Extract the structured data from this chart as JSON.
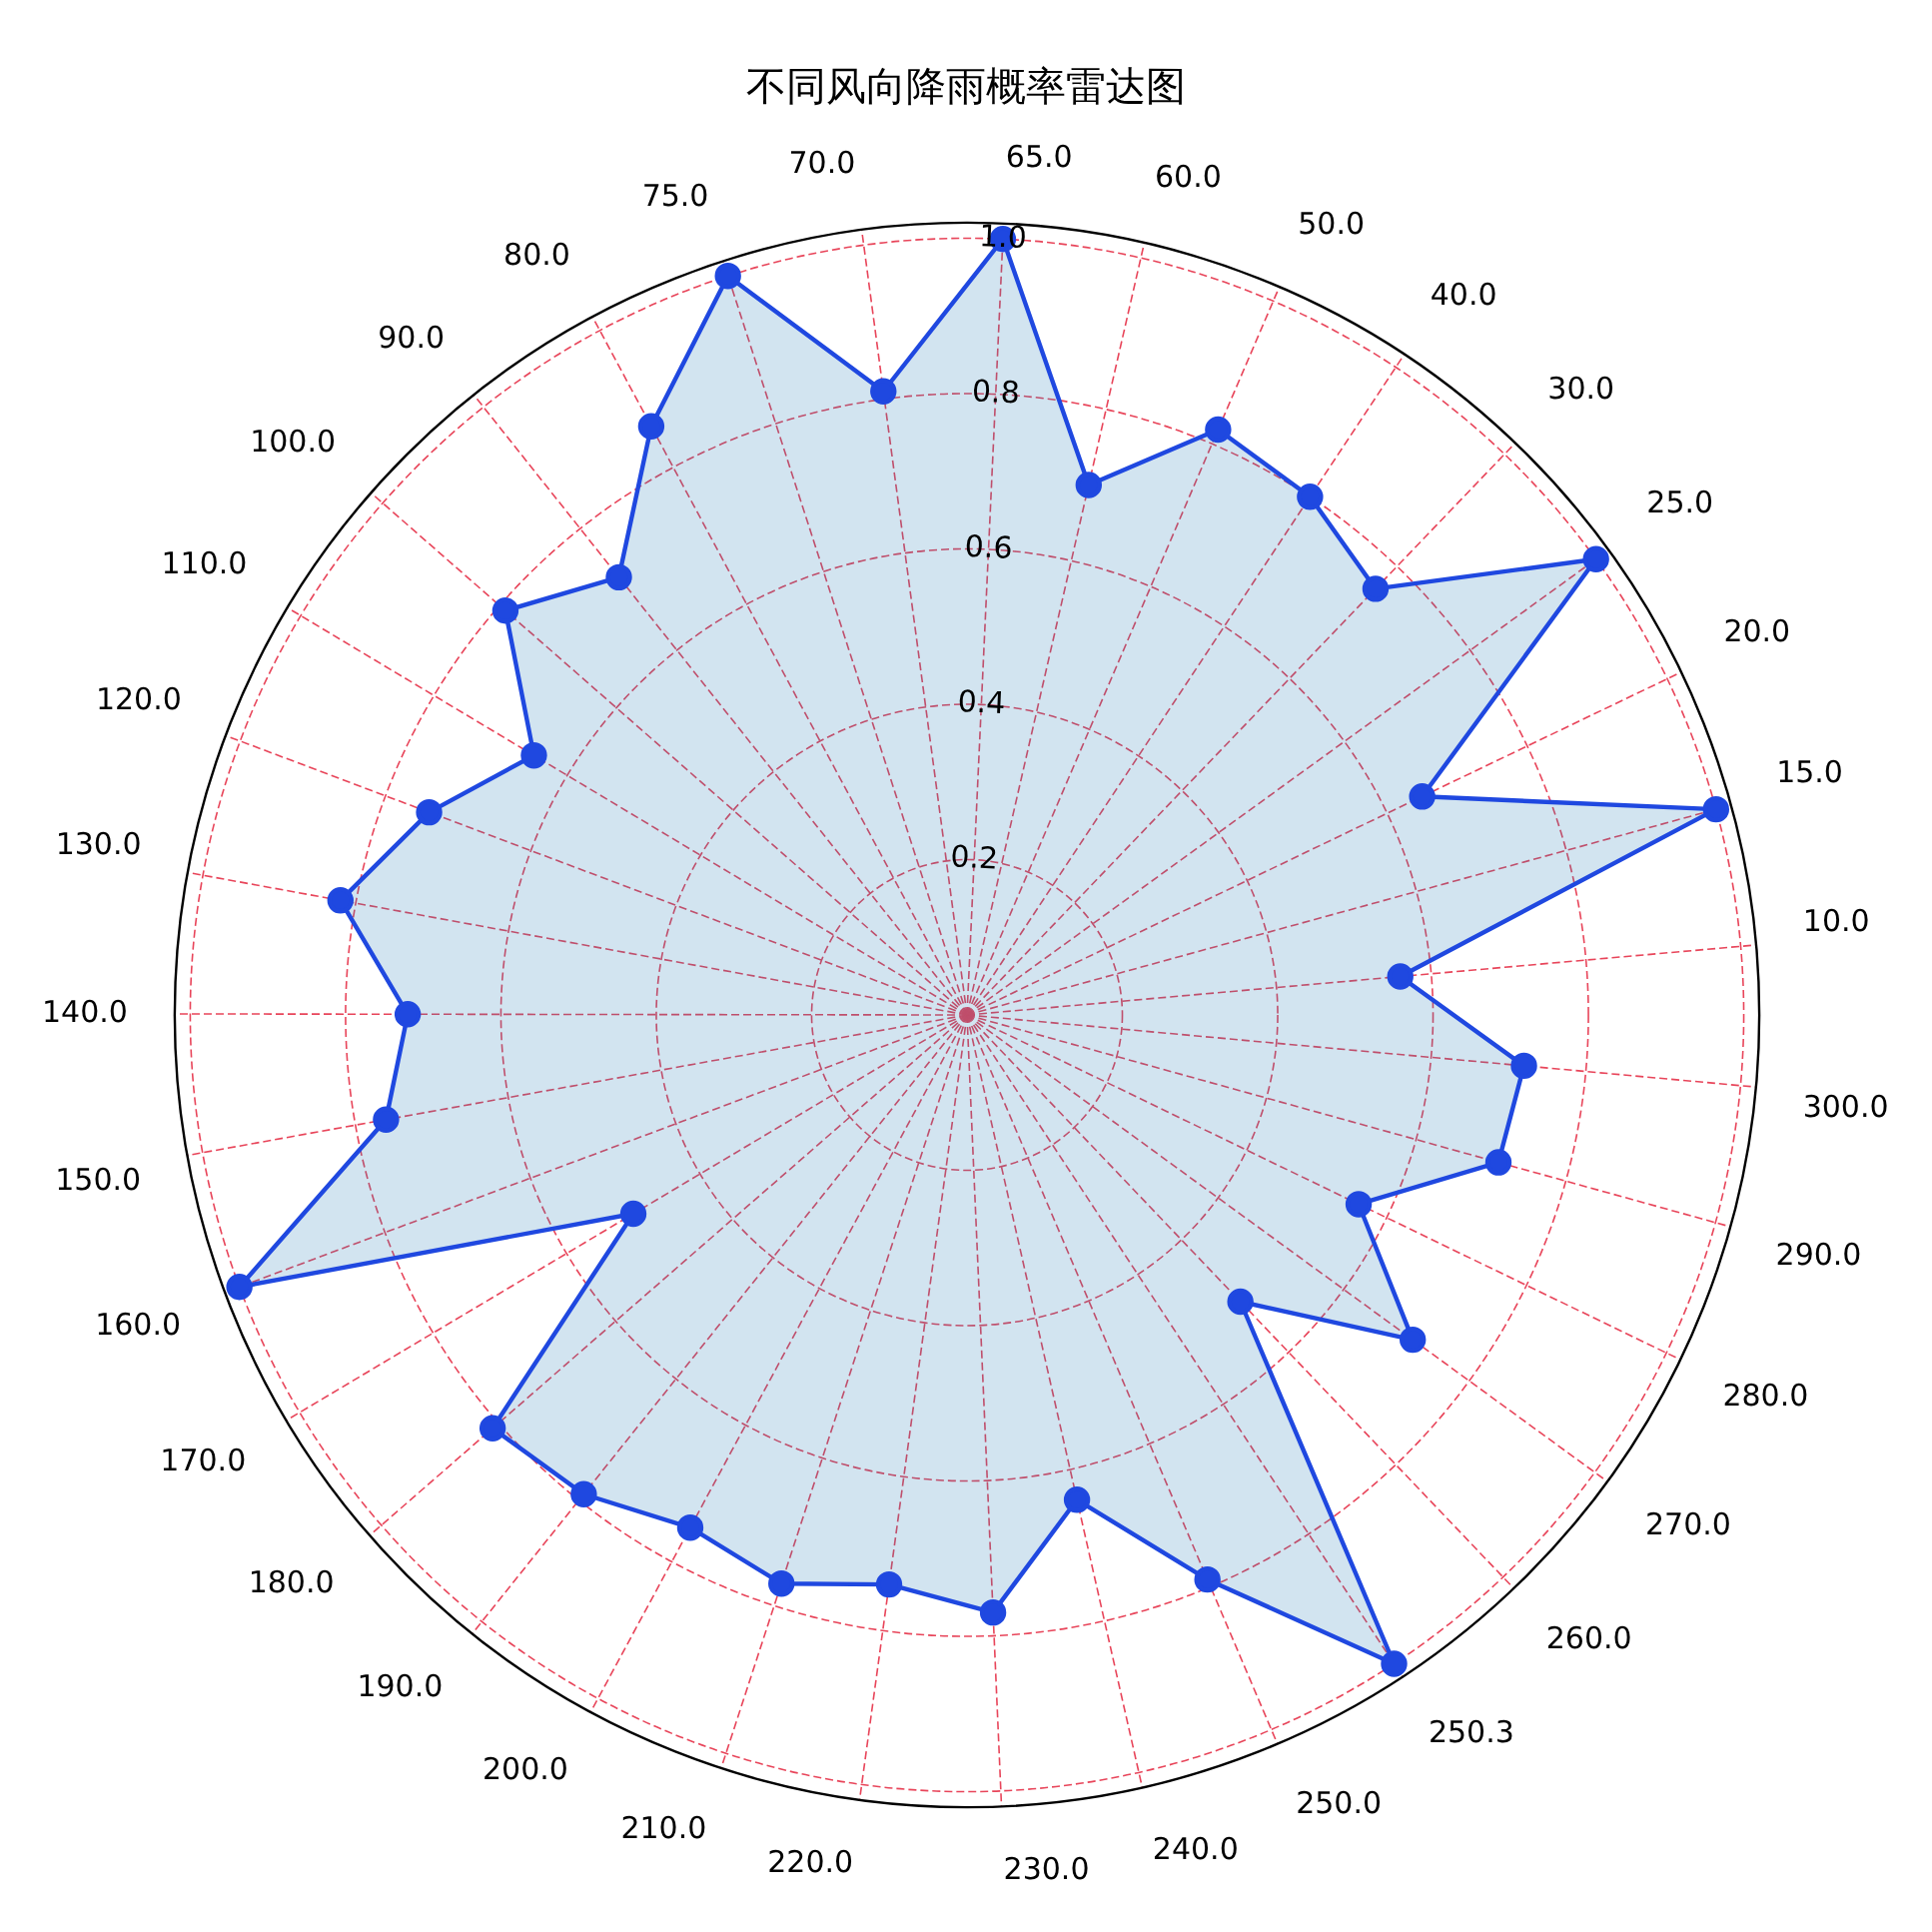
{
  "chart_data": {
    "type": "radar",
    "title": "不同风向降雨概率雷达图",
    "categories": [
      "65.0",
      "60.0",
      "50.0",
      "40.0",
      "30.0",
      "25.0",
      "20.0",
      "15.0",
      "10.0",
      "300.0",
      "290.0",
      "280.0",
      "270.0",
      "260.0",
      "250.3",
      "250.0",
      "240.0",
      "230.0",
      "220.0",
      "210.0",
      "200.0",
      "190.0",
      "180.0",
      "170.0",
      "160.0",
      "150.0",
      "140.0",
      "130.0",
      "120.0",
      "110.0",
      "100.0",
      "90.0",
      "80.0",
      "75.0",
      "70.0"
    ],
    "series": [
      {
        "color": "#1f48e0",
        "values": [
          1.0,
          0.7,
          0.82,
          0.8,
          0.76,
          1.0,
          0.65,
          1.0,
          0.56,
          0.72,
          0.71,
          0.56,
          0.71,
          0.51,
          1.0,
          0.79,
          0.64,
          0.77,
          0.74,
          0.77,
          0.75,
          0.79,
          0.81,
          0.5,
          1.0,
          0.76,
          0.72,
          0.82,
          0.74,
          0.65,
          0.79,
          0.72,
          0.86,
          1.0,
          0.81
        ]
      }
    ],
    "ylim": [
      0,
      1.02
    ],
    "yticks": [
      0.2,
      0.4,
      0.6,
      0.8,
      {
        "value": 1,
        "label": "1.0"
      }
    ],
    "grid": true,
    "marker": "circle",
    "legend": false
  }
}
